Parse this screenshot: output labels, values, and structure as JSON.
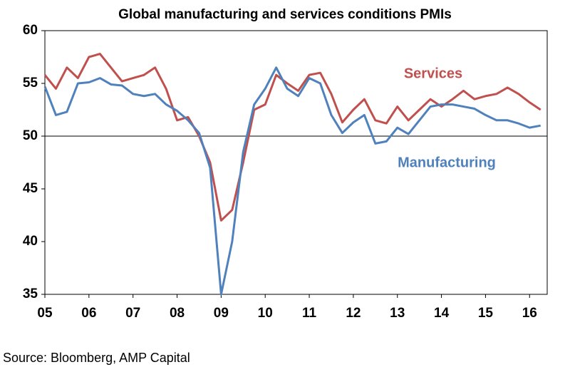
{
  "chart_data": {
    "type": "line",
    "title": "Global manufacturing and services conditions PMIs",
    "source": "Source: Bloomberg, AMP Capital",
    "x": [
      2005,
      2005.25,
      2005.5,
      2005.75,
      2006,
      2006.25,
      2006.5,
      2006.75,
      2007,
      2007.25,
      2007.5,
      2007.75,
      2008,
      2008.25,
      2008.5,
      2008.75,
      2009,
      2009.25,
      2009.5,
      2009.75,
      2010,
      2010.25,
      2010.5,
      2010.75,
      2011,
      2011.25,
      2011.5,
      2011.75,
      2012,
      2012.25,
      2012.5,
      2012.75,
      2013,
      2013.25,
      2013.5,
      2013.75,
      2014,
      2014.25,
      2014.5,
      2014.75,
      2015,
      2015.25,
      2015.5,
      2015.75,
      2016,
      2016.25
    ],
    "series": [
      {
        "name": "Services",
        "color": "#c0504d",
        "values": [
          55.8,
          54.5,
          56.5,
          55.5,
          57.5,
          57.8,
          56.5,
          55.2,
          55.5,
          55.8,
          56.5,
          54.5,
          51.5,
          51.8,
          50.0,
          47.5,
          42.0,
          43.0,
          47.5,
          52.5,
          53.0,
          55.8,
          55.0,
          54.3,
          55.8,
          56.0,
          54.0,
          51.3,
          52.5,
          53.5,
          51.5,
          51.2,
          52.8,
          51.5,
          52.5,
          53.5,
          52.8,
          53.5,
          54.3,
          53.5,
          53.8,
          54.0,
          54.6,
          54.0,
          53.2,
          52.5
        ]
      },
      {
        "name": "Manufacturing",
        "color": "#4f81bd",
        "values": [
          54.7,
          52.0,
          52.3,
          55.0,
          55.1,
          55.5,
          54.9,
          54.8,
          54.0,
          53.8,
          54.0,
          53.0,
          52.4,
          51.5,
          50.3,
          47.0,
          35.0,
          40.0,
          48.5,
          53.0,
          54.5,
          56.5,
          54.5,
          53.8,
          55.5,
          55.0,
          52.0,
          50.3,
          51.3,
          52.0,
          49.3,
          49.5,
          50.8,
          50.2,
          51.5,
          52.8,
          53.0,
          53.0,
          52.8,
          52.6,
          52.0,
          51.5,
          51.5,
          51.2,
          50.8,
          51.0
        ]
      }
    ],
    "xlim": [
      2005,
      2016.4
    ],
    "xticks": [
      {
        "value": 2005,
        "label": "05"
      },
      {
        "value": 2006,
        "label": "06"
      },
      {
        "value": 2007,
        "label": "07"
      },
      {
        "value": 2008,
        "label": "08"
      },
      {
        "value": 2009,
        "label": "09"
      },
      {
        "value": 2010,
        "label": "10"
      },
      {
        "value": 2011,
        "label": "11"
      },
      {
        "value": 2012,
        "label": "12"
      },
      {
        "value": 2013,
        "label": "13"
      },
      {
        "value": 2014,
        "label": "14"
      },
      {
        "value": 2015,
        "label": "15"
      },
      {
        "value": 2016,
        "label": "16"
      }
    ],
    "ylim": [
      35,
      60
    ],
    "yticks": [
      35,
      40,
      45,
      50,
      55,
      60
    ],
    "reference_line": 50,
    "grid": false
  }
}
